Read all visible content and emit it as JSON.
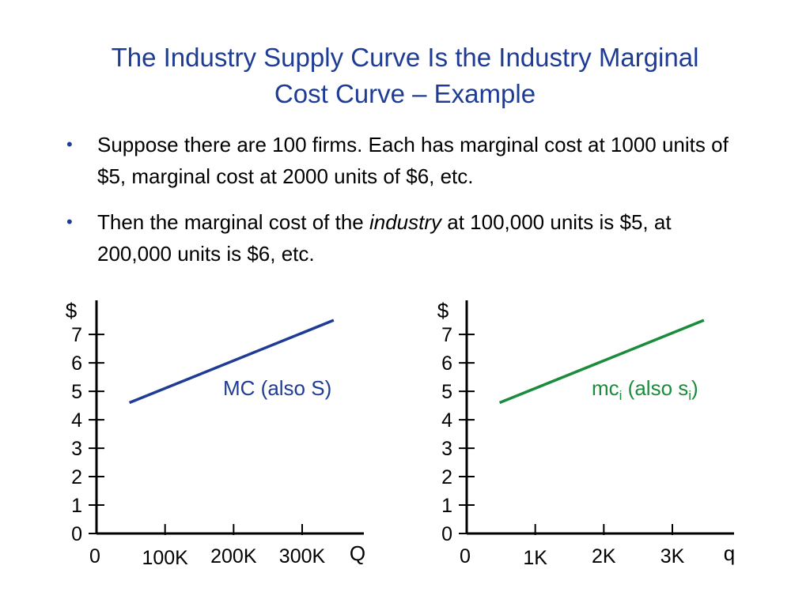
{
  "title": {
    "line1": "The Industry Supply Curve Is the Industry Marginal",
    "line2": "Cost Curve – Example"
  },
  "bullets": [
    {
      "text": "Suppose there are 100 firms. Each has marginal cost at 1000 units of $5, marginal cost at 2000 units of $6, etc."
    },
    {
      "pre": "Then the marginal cost of the ",
      "italic": "industry",
      "post": " at 100,000 units is $5, at 200,000 units is $6, etc."
    }
  ],
  "colors": {
    "title": "#1f3c95",
    "industry_line": "#1f3c95",
    "firm_line": "#1a8c3c",
    "axis": "#000000"
  },
  "chart_data": [
    {
      "type": "line",
      "ylabel": "$",
      "xlabel": "Q",
      "x_ticks": [
        0,
        100000,
        200000,
        300000
      ],
      "x_tick_labels": [
        "0",
        "100K",
        "200K",
        "300K"
      ],
      "y_ticks": [
        0,
        1,
        2,
        3,
        4,
        5,
        6,
        7
      ],
      "y_tick_labels": [
        "0",
        "1",
        "2",
        "3",
        "4",
        "5",
        "6",
        "7"
      ],
      "xlim": [
        0,
        390000
      ],
      "ylim": [
        0,
        8.2
      ],
      "series": [
        {
          "name": "MC (also S)",
          "label_main": "MC (also S)",
          "color": "#1f3c95",
          "x": [
            48000,
            346000
          ],
          "y": [
            4.6,
            7.5
          ]
        }
      ],
      "grid": false
    },
    {
      "type": "line",
      "ylabel": "$",
      "xlabel": "q",
      "x_ticks": [
        0,
        1000,
        2000,
        3000
      ],
      "x_tick_labels": [
        "0",
        "1K",
        "2K",
        "3K"
      ],
      "y_ticks": [
        0,
        1,
        2,
        3,
        4,
        5,
        6,
        7
      ],
      "y_tick_labels": [
        "0",
        "1",
        "2",
        "3",
        "4",
        "5",
        "6",
        "7"
      ],
      "xlim": [
        0,
        3900
      ],
      "ylim": [
        0,
        8.2
      ],
      "series": [
        {
          "name": "mci (also si)",
          "label_main": "mc",
          "label_sub1": "i",
          "label_mid": " (also s",
          "label_sub2": "i",
          "label_end": ")",
          "color": "#1a8c3c",
          "x": [
            480,
            3460
          ],
          "y": [
            4.6,
            7.5
          ]
        }
      ],
      "grid": false
    }
  ]
}
